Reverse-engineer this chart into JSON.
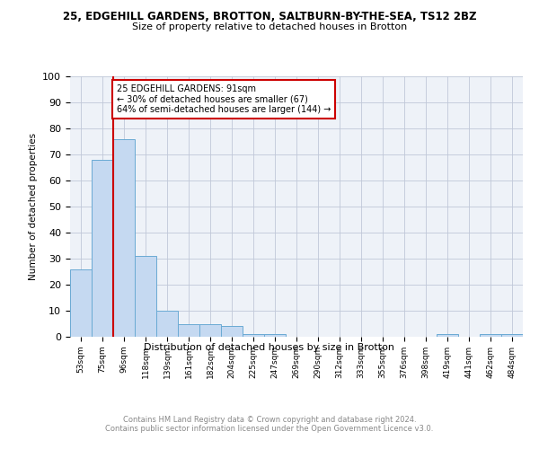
{
  "title1": "25, EDGEHILL GARDENS, BROTTON, SALTBURN-BY-THE-SEA, TS12 2BZ",
  "title2": "Size of property relative to detached houses in Brotton",
  "xlabel": "Distribution of detached houses by size in Brotton",
  "ylabel": "Number of detached properties",
  "categories": [
    "53sqm",
    "75sqm",
    "96sqm",
    "118sqm",
    "139sqm",
    "161sqm",
    "182sqm",
    "204sqm",
    "225sqm",
    "247sqm",
    "269sqm",
    "290sqm",
    "312sqm",
    "333sqm",
    "355sqm",
    "376sqm",
    "398sqm",
    "419sqm",
    "441sqm",
    "462sqm",
    "484sqm"
  ],
  "values": [
    26,
    68,
    76,
    31,
    10,
    5,
    5,
    4,
    1,
    1,
    0,
    0,
    0,
    0,
    0,
    0,
    0,
    1,
    0,
    1,
    1
  ],
  "bar_color": "#c5d9f1",
  "bar_edge_color": "#6aaad4",
  "vline_x": 1.5,
  "vline_color": "#cc0000",
  "annotation_text": "25 EDGEHILL GARDENS: 91sqm\n← 30% of detached houses are smaller (67)\n64% of semi-detached houses are larger (144) →",
  "annotation_box_color": "#ffffff",
  "annotation_box_edge": "#cc0000",
  "ylim": [
    0,
    100
  ],
  "yticks": [
    0,
    10,
    20,
    30,
    40,
    50,
    60,
    70,
    80,
    90,
    100
  ],
  "grid_color": "#c0c8d8",
  "background_color": "#eef2f8",
  "footer": "Contains HM Land Registry data © Crown copyright and database right 2024.\nContains public sector information licensed under the Open Government Licence v3.0.",
  "footer_color": "#888888"
}
